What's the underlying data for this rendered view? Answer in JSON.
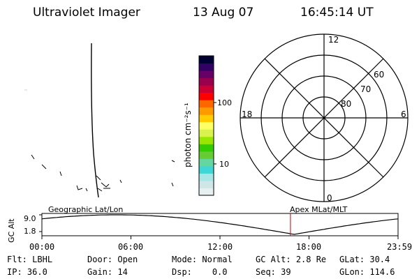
{
  "header": {
    "instrument": "Ultraviolet Imager",
    "date": "13 Aug 07",
    "time": "16:45:14 UT"
  },
  "colorbar": {
    "unit_label": "photon cm⁻²s⁻¹",
    "tick_100": "100",
    "tick_10": "10",
    "colors": [
      "#e6f0f0",
      "#cfe6e6",
      "#a6e6e6",
      "#40d6d6",
      "#66d6a0",
      "#66cc33",
      "#33cc00",
      "#99e600",
      "#d9f24d",
      "#ffff66",
      "#ffcc00",
      "#ff9900",
      "#ff6600",
      "#ff0000",
      "#cc0033",
      "#99004d",
      "#660066",
      "#330066",
      "#000033"
    ]
  },
  "polar_plot": {
    "label_top": "12",
    "label_bottom": "0",
    "label_left": "18",
    "label_right": "6",
    "ring_60": "60",
    "ring_70": "70",
    "ring_80": "80"
  },
  "altitude_panel": {
    "axis_label": "GC Alt",
    "ytick_high": "9.0",
    "ytick_low": "1.8",
    "left_title": "Geographic Lat/Lon",
    "right_title": "Apex MLat/MLT",
    "x_ticks": [
      "00:00",
      "06:00",
      "12:00",
      "18:00",
      "23:59"
    ],
    "marker_time_hours": 16.75,
    "marker_color": "#cc0000"
  },
  "info": {
    "flt_label": "Flt:",
    "flt_value": "LBHL",
    "door_label": "Door:",
    "door_value": "Open",
    "mode_label": "Mode:",
    "mode_value": "Normal",
    "gcalt_label": "GC Alt:",
    "gcalt_value": "2.8 Re",
    "glat_label": "GLat:",
    "glat_value": "30.4",
    "ip_label": "IP:",
    "ip_value": "36.0",
    "gain_label": "Gain:",
    "gain_value": "14",
    "dsp_label": "Dsp:",
    "dsp_value": "0.0",
    "seq_label": "Seq:",
    "seq_value": "39",
    "glon_label": "GLon:",
    "glon_value": "114.6"
  }
}
